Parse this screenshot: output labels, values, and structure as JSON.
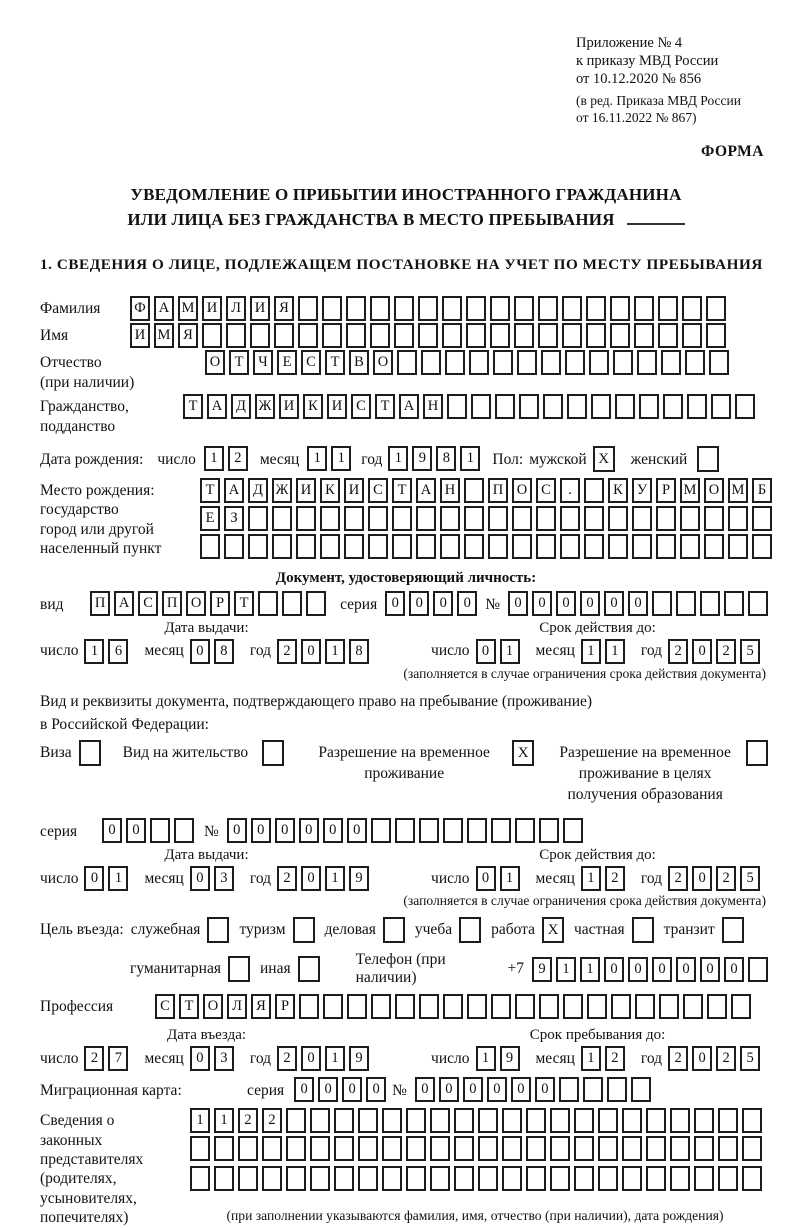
{
  "header": {
    "line1": "Приложение № 4",
    "line2": "к приказу МВД России",
    "line3": "от 10.12.2020 № 856",
    "line4": "(в ред. Приказа МВД России",
    "line5": "от 16.11.2022 № 867)",
    "forma": "ФОРМА"
  },
  "title": {
    "line1": "УВЕДОМЛЕНИЕ О ПРИБЫТИИ ИНОСТРАННОГО ГРАЖДАНИНА",
    "line2": "ИЛИ ЛИЦА БЕЗ ГРАЖДАНСТВА В МЕСТО ПРЕБЫВАНИЯ"
  },
  "section1_heading": "1. СВЕДЕНИЯ О ЛИЦЕ, ПОДЛЕЖАЩЕМ ПОСТАНОВКЕ НА УЧЕТ ПО МЕСТУ ПРЕБЫВАНИЯ",
  "date_labels": {
    "day": "число",
    "month": "месяц",
    "year": "год"
  },
  "person": {
    "surname": {
      "label": "Фамилия",
      "value": "ФАМИЛИЯ"
    },
    "name": {
      "label": "Имя",
      "value": "ИМЯ"
    },
    "patronymic": {
      "label": "Отчество",
      "note": "(при наличии)",
      "value": "ОТЧЕСТВО"
    },
    "citizenship": {
      "label": "Гражданство,",
      "label2": "подданство",
      "value": "ТАДЖИКИСТАН"
    },
    "birth_date": {
      "label": "Дата рождения:",
      "day": "12",
      "month": "11",
      "year": "1981"
    },
    "sex": {
      "label": "Пол:",
      "male_label": "мужской",
      "male": "X",
      "female_label": "женский",
      "female": ""
    },
    "birth_place": {
      "label1": "Место рождения:",
      "label2": "государство",
      "label3": "город или другой",
      "label4": "населенный пункт",
      "line1": "ТАДЖИКИСТАН ПОС. КУРМОМБ",
      "line2": "ЕЗ",
      "line3": ""
    }
  },
  "identity_doc": {
    "heading": "Документ, удостоверяющий личность:",
    "type_label": "вид",
    "type_value": "ПАСПОРТ",
    "series_label": "серия",
    "series_value": "0000",
    "number_label": "№",
    "number_value": "000000",
    "issue_title": "Дата выдачи:",
    "issue": {
      "day": "16",
      "month": "08",
      "year": "2018"
    },
    "expiry_title": "Срок действия до:",
    "expiry": {
      "day": "01",
      "month": "11",
      "year": "2025"
    },
    "note": "(заполняется в случае ограничения срока действия документа)"
  },
  "residence_doc": {
    "intro1": "Вид и реквизиты документа, подтверждающего право на пребывание (проживание)",
    "intro2": "в Российской Федерации:",
    "visa_label": "Виза",
    "visa": "",
    "residence_permit_label": "Вид на жительство",
    "residence_permit": "",
    "rvp_lines": [
      "Разрешение на временное",
      "проживание"
    ],
    "rvp": "X",
    "rvp_edu_lines": [
      "Разрешение на временное",
      "проживание в целях",
      "получения образования"
    ],
    "rvp_edu": "",
    "series_label": "серия",
    "series_value": "00",
    "number_label": "№",
    "number_value": "000000",
    "issue_title": "Дата выдачи:",
    "issue": {
      "day": "01",
      "month": "03",
      "year": "2019"
    },
    "expiry_title": "Срок действия до:",
    "expiry": {
      "day": "01",
      "month": "12",
      "year": "2025"
    },
    "note": "(заполняется в случае ограничения срока действия документа)"
  },
  "entry": {
    "purpose_label": "Цель въезда:",
    "options_row1": [
      {
        "label": "служебная",
        "value": ""
      },
      {
        "label": "туризм",
        "value": ""
      },
      {
        "label": "деловая",
        "value": ""
      },
      {
        "label": "учеба",
        "value": ""
      },
      {
        "label": "работа",
        "value": "X"
      },
      {
        "label": "частная",
        "value": ""
      },
      {
        "label": "транзит",
        "value": ""
      }
    ],
    "options_row2": [
      {
        "label": "гуманитарная",
        "value": ""
      },
      {
        "label": "иная",
        "value": ""
      }
    ],
    "phone_label": "Телефон (при наличии)",
    "phone_prefix": "+7",
    "phone_value": "911000000",
    "profession_label": "Профессия",
    "profession_value": "СТОЛЯР",
    "entry_date_title": "Дата въезда:",
    "entry_date": {
      "day": "27",
      "month": "03",
      "year": "2019"
    },
    "stay_until_title": "Срок пребывания до:",
    "stay_until": {
      "day": "19",
      "month": "12",
      "year": "2025"
    }
  },
  "migration_card": {
    "label": "Миграционная карта:",
    "series_label": "серия",
    "series_value": "0000",
    "number_label": "№",
    "number_value": "000000"
  },
  "legal_representatives": {
    "label_lines": [
      "Сведения о",
      "законных",
      "представителях",
      "(родителях,",
      "усыновителях,",
      "попечителях)"
    ],
    "line1": "1122",
    "line2": "",
    "line3": "",
    "note": "(при заполнении указываются фамилия, имя, отчество (при наличии), дата рождения)"
  }
}
